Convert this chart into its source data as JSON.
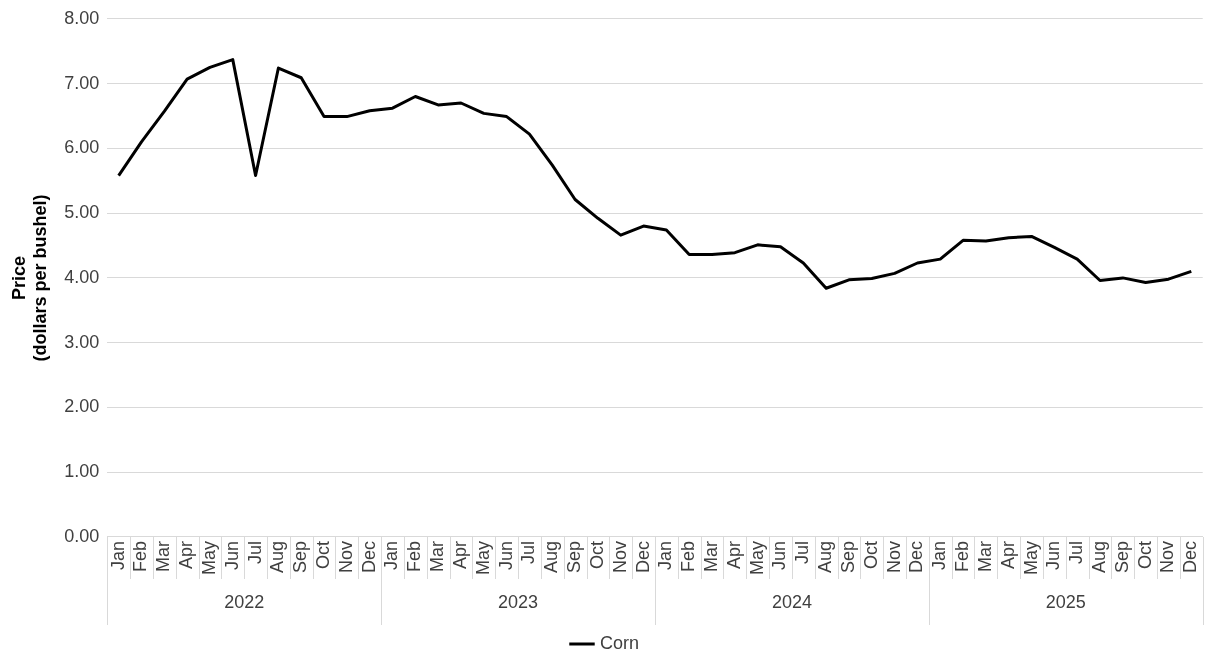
{
  "chart_data": {
    "type": "line",
    "ylabel": "Price\n(dollars per bushel)",
    "categories": [
      "Jan",
      "Feb",
      "Mar",
      "Apr",
      "May",
      "Jun",
      "Jul",
      "Aug",
      "Sep",
      "Oct",
      "Nov",
      "Dec",
      "Jan",
      "Feb",
      "Mar",
      "Apr",
      "May",
      "Jun",
      "Jul",
      "Aug",
      "Sep",
      "Oct",
      "Nov",
      "Dec",
      "Jan",
      "Feb",
      "Mar",
      "Apr",
      "May",
      "Jun",
      "Jul",
      "Aug",
      "Sep",
      "Oct",
      "Nov",
      "Dec",
      "Jan",
      "Feb",
      "Mar",
      "Apr",
      "May",
      "Jun",
      "Jul",
      "Aug",
      "Sep",
      "Oct",
      "Nov",
      "Dec"
    ],
    "series": [
      {
        "name": "Corn",
        "color": "#000000",
        "values": [
          5.58,
          6.1,
          6.57,
          7.07,
          7.25,
          7.37,
          5.58,
          7.24,
          7.09,
          6.49,
          6.49,
          6.58,
          6.62,
          6.8,
          6.67,
          6.7,
          6.54,
          6.49,
          6.22,
          5.74,
          5.21,
          4.92,
          4.66,
          4.8,
          4.74,
          4.36,
          4.36,
          4.39,
          4.51,
          4.48,
          4.23,
          3.84,
          3.97,
          3.99,
          4.07,
          4.23,
          4.29,
          4.58,
          4.57,
          4.62,
          4.64,
          4.47,
          4.29,
          3.96,
          4.0,
          3.93,
          3.98,
          4.1
        ]
      }
    ],
    "annotations": [
      "2022",
      "2023",
      "2024",
      "2025"
    ],
    "ylim": [
      0,
      8
    ],
    "yticks": [
      {
        "value": 0,
        "label": "0.00"
      },
      {
        "value": 1,
        "label": "1.00"
      },
      {
        "value": 2,
        "label": "2.00"
      },
      {
        "value": 3,
        "label": "3.00"
      },
      {
        "value": 4,
        "label": "4.00"
      },
      {
        "value": 5,
        "label": "5.00"
      },
      {
        "value": 6,
        "label": "6.00"
      },
      {
        "value": 7,
        "label": "7.00"
      },
      {
        "value": 8,
        "label": "8.00"
      }
    ],
    "grid": "y",
    "legend": "bottom",
    "marker": "none",
    "line_style": "solid"
  }
}
